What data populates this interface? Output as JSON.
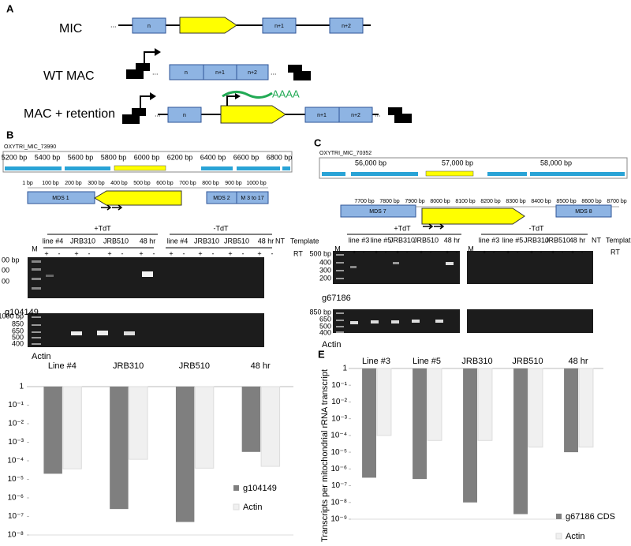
{
  "panel_a": {
    "label": "A",
    "rows": [
      "MIC",
      "WT MAC",
      "MAC + retention"
    ],
    "segments": [
      "n",
      "n+1",
      "n+2"
    ],
    "ellipsis": "...",
    "polya": "AAAA"
  },
  "panel_b": {
    "label": "B",
    "locus": "OXYTRI_MIC_73990",
    "ruler": [
      "5200 bp",
      "5400 bp",
      "5600 bp",
      "5800 bp",
      "6000 bp",
      "6200 bp",
      "6400 bp",
      "6600 bp",
      "6800 bp"
    ],
    "map_ruler": [
      "1 bp",
      "100 bp",
      "200 bp",
      "300 bp",
      "400 bp",
      "500 bp",
      "600 bp",
      "700 bp",
      "800 bp",
      "900 bp",
      "1000 bp"
    ],
    "mds": [
      "MDS 1",
      "MDS 2",
      "M 3 to 17"
    ],
    "gel": {
      "groups": [
        "+TdT",
        "-TdT"
      ],
      "lanes": [
        "line #4",
        "JRB310",
        "JRB510",
        "48 hr"
      ],
      "nt": "NT",
      "template": "Template",
      "rt": "RT",
      "signs": [
        "+",
        "-"
      ],
      "marker": "M",
      "ladder_top": [
        "00 bp",
        "00",
        "00"
      ],
      "ladder_bottom": [
        "1000 bp",
        "850",
        "650",
        "500",
        "400"
      ],
      "genes": [
        "g104149",
        "Actin"
      ]
    }
  },
  "panel_c": {
    "label": "C",
    "locus": "OXYTRI_MIC_70352",
    "ruler": [
      "56,000 bp",
      "57,000 bp",
      "58,000 bp"
    ],
    "map_ruler": [
      "7700 bp",
      "7800 bp",
      "7900 bp",
      "8000 bp",
      "8100 bp",
      "8200 bp",
      "8300 bp",
      "8400 bp",
      "8500 bp",
      "8600 bp",
      "8700 bp"
    ],
    "mds": [
      "MDS 7",
      "MDS 8"
    ],
    "gel": {
      "groups": [
        "+TdT",
        "-TdT"
      ],
      "lanes": [
        "line #3",
        "line #5",
        "JRB310",
        "JRB510",
        "48 hr"
      ],
      "nt": "NT",
      "template": "Templat",
      "rt": "RT",
      "signs": [
        "+",
        "-"
      ],
      "marker": "M",
      "ladder_top": [
        "500 bp",
        "400",
        "300",
        "200"
      ],
      "ladder_bottom": [
        "850 bp",
        "650",
        "500",
        "400"
      ],
      "genes": [
        "g67186",
        "Actin"
      ]
    }
  },
  "chart_data": [
    {
      "type": "bar",
      "log_scale": true,
      "categories": [
        "Line #4",
        "JRB310",
        "JRB510",
        "48 hr"
      ],
      "series": [
        {
          "name": "g104149",
          "color": "#7f7f7f",
          "values": [
            2e-05,
            2.5e-07,
            5e-08,
            0.0003
          ]
        },
        {
          "name": "Actin",
          "color": "#f0f0f0",
          "values": [
            3.7e-05,
            0.00012,
            4e-05,
            5e-05
          ]
        }
      ],
      "ylim": [
        1e-08,
        1
      ],
      "yticks": [
        {
          "value": 1e-08,
          "label": "10⁻⁸"
        },
        {
          "value": 1e-07,
          "label": "10⁻⁷"
        },
        {
          "value": 1e-06,
          "label": "10⁻⁶"
        },
        {
          "value": 1e-05,
          "label": "10⁻⁵"
        },
        {
          "value": 0.0001,
          "label": "10⁻⁴"
        },
        {
          "value": 0.001,
          "label": "10⁻³"
        },
        {
          "value": 0.01,
          "label": "10⁻²"
        },
        {
          "value": 0.1,
          "label": "10⁻¹"
        },
        1
      ]
    },
    {
      "type": "bar",
      "log_scale": true,
      "label": "E",
      "y_label": "Transcripts per mitochondrial rRNA transcript",
      "categories": [
        "Line #3",
        "Line #5",
        "JRB310",
        "JRB510",
        "48 hr"
      ],
      "series": [
        {
          "name": "g67186 CDS",
          "color": "#7f7f7f",
          "values": [
            3e-07,
            2.5e-07,
            1e-08,
            2e-09,
            1e-05
          ]
        },
        {
          "name": "Actin",
          "color": "#f0f0f0",
          "values": [
            0.0001,
            5e-05,
            5e-05,
            2e-05,
            2e-05
          ]
        }
      ],
      "ylim": [
        1e-09,
        1
      ],
      "yticks": [
        {
          "value": 1e-09,
          "label": "10⁻⁹"
        },
        {
          "value": 1e-08,
          "label": "10⁻⁸"
        },
        {
          "value": 1e-07,
          "label": "10⁻⁷"
        },
        {
          "value": 1e-06,
          "label": "10⁻⁶"
        },
        {
          "value": 1e-05,
          "label": "10⁻⁵"
        },
        {
          "value": 0.0001,
          "label": "10⁻⁴"
        },
        {
          "value": 0.001,
          "label": "10⁻³"
        },
        {
          "value": 0.01,
          "label": "10⁻²"
        },
        {
          "value": 0.1,
          "label": "10⁻¹"
        },
        1
      ]
    }
  ]
}
